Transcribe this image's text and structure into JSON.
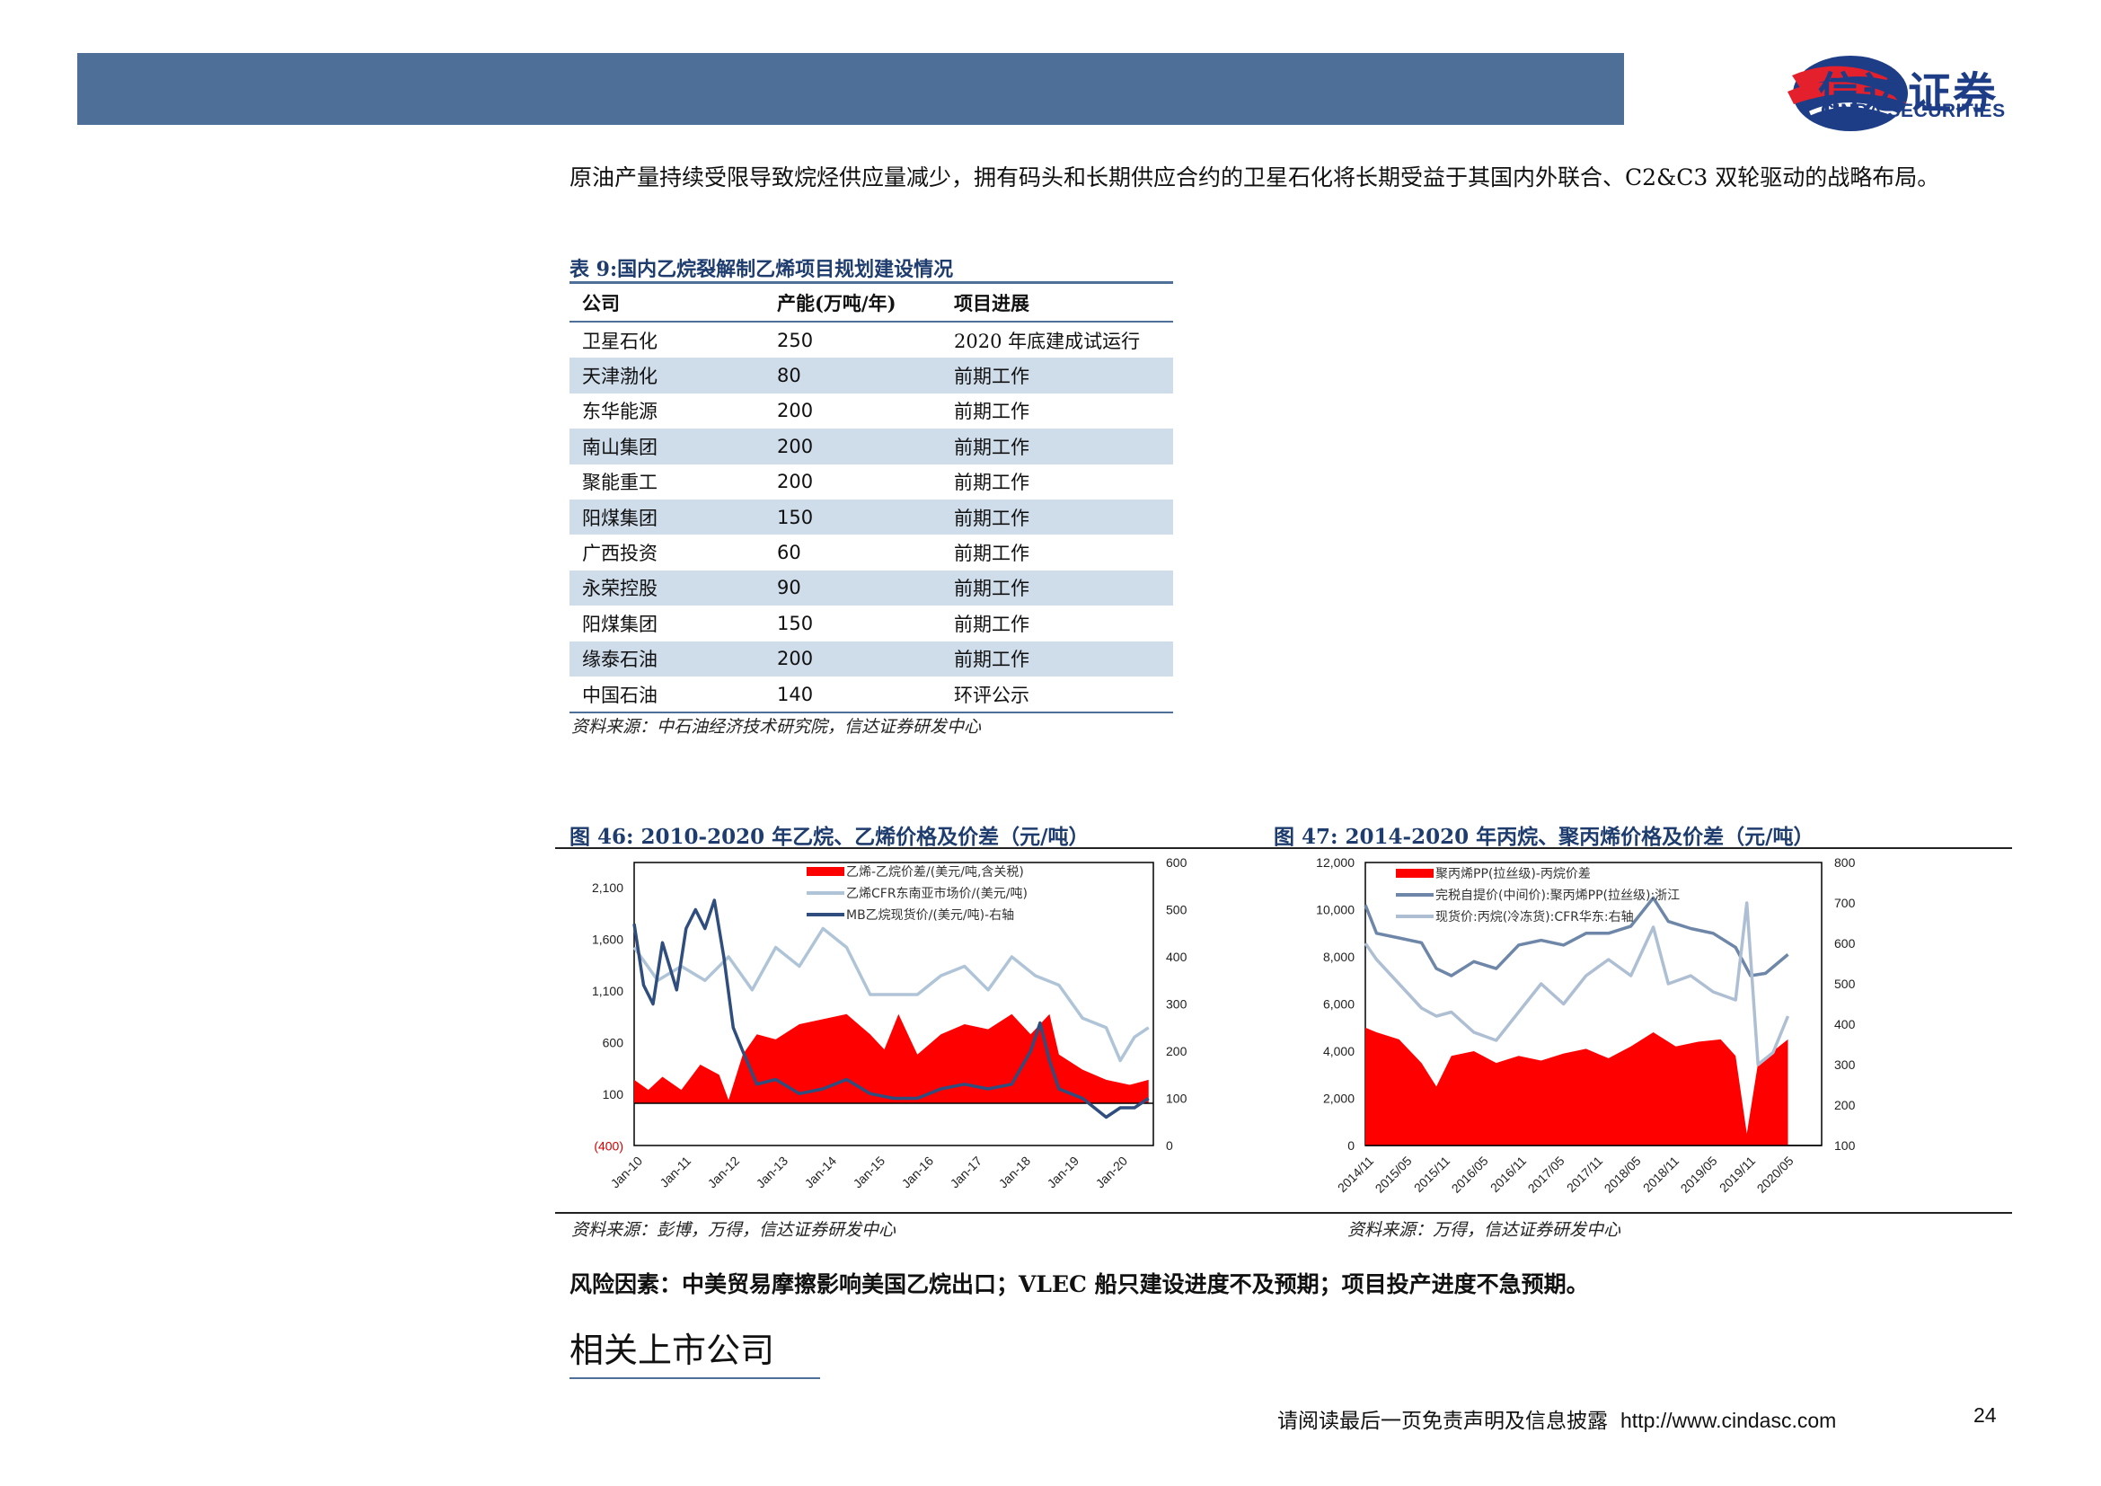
{
  "header": {
    "logo_cn": "信达证券",
    "logo_en": "CINDA SECURITIES"
  },
  "intro": "原油产量持续受限导致烷烃供应量减少，拥有码头和长期供应合约的卫星石化将长期受益于其国内外联合、C2&C3 双轮驱动的战略布局。",
  "table9": {
    "title": "表 9:国内乙烷裂解制乙烯项目规划建设情况",
    "headers": [
      "公司",
      "产能(万吨/年)",
      "项目进展"
    ],
    "rows": [
      [
        "卫星石化",
        "250",
        "2020 年底建成试运行"
      ],
      [
        "天津渤化",
        "80",
        "前期工作"
      ],
      [
        "东华能源",
        "200",
        "前期工作"
      ],
      [
        "南山集团",
        "200",
        "前期工作"
      ],
      [
        "聚能重工",
        "200",
        "前期工作"
      ],
      [
        "阳煤集团",
        "150",
        "前期工作"
      ],
      [
        "广西投资",
        "60",
        "前期工作"
      ],
      [
        "永荣控股",
        "90",
        "前期工作"
      ],
      [
        "阳煤集团",
        "150",
        "前期工作"
      ],
      [
        "缘泰石油",
        "200",
        "前期工作"
      ],
      [
        "中国石油",
        "140",
        "环评公示"
      ]
    ],
    "source": "资料来源：中石油经济技术研究院，信达证券研发中心"
  },
  "fig46": {
    "title": "图 46:  2010-2020 年乙烷、乙烯价格及价差（元/吨）",
    "source": "资料来源：彭博，万得，信达证券研发中心"
  },
  "fig47": {
    "title": "图 47:  2014-2020 年丙烷、聚丙烯价格及价差（元/吨）",
    "source": "资料来源：万得，信达证券研发中心"
  },
  "chart_data": [
    {
      "type": "area",
      "y_left_ticks": [
        "2,100",
        "1,600",
        "1,100",
        "600",
        "100",
        "(400)"
      ],
      "y_right_ticks": [
        "600",
        "500",
        "400",
        "300",
        "200",
        "100",
        "0"
      ],
      "x_ticks": [
        "Jan-10",
        "Jan-11",
        "Jan-12",
        "Jan-13",
        "Jan-14",
        "Jan-15",
        "Jan-16",
        "Jan-17",
        "Jan-18",
        "Jan-19",
        "Jan-20"
      ],
      "ylim_left": [
        -400,
        2400
      ],
      "ylim_right": [
        0,
        600
      ],
      "series": [
        {
          "name": "乙烯-乙烷价差/(美元/吨,含关税)",
          "color": "#ff0000",
          "axis": "left",
          "x": [
            2010.0,
            2010.3,
            2010.6,
            2011.0,
            2011.4,
            2011.8,
            2012.0,
            2012.3,
            2012.6,
            2013.0,
            2013.5,
            2014.0,
            2014.5,
            2015.0,
            2015.3,
            2015.6,
            2016.0,
            2016.5,
            2017.0,
            2017.5,
            2018.0,
            2018.4,
            2018.8,
            2019.0,
            2019.5,
            2020.0,
            2020.5,
            2020.9
          ],
          "values": [
            250,
            150,
            280,
            150,
            400,
            300,
            50,
            500,
            700,
            650,
            800,
            850,
            900,
            700,
            550,
            900,
            500,
            700,
            800,
            750,
            900,
            700,
            900,
            500,
            350,
            250,
            200,
            250
          ]
        },
        {
          "name": "乙烯CFR东南亚市场价/(美元/吨)",
          "color": "#b0c4d8",
          "axis": "right",
          "x": [
            2010.0,
            2010.5,
            2011.0,
            2011.5,
            2012.0,
            2012.5,
            2013.0,
            2013.5,
            2014.0,
            2014.5,
            2015.0,
            2015.5,
            2016.0,
            2016.5,
            2017.0,
            2017.5,
            2018.0,
            2018.5,
            2019.0,
            2019.5,
            2020.0,
            2020.3,
            2020.6,
            2020.9
          ],
          "values": [
            420,
            350,
            380,
            350,
            400,
            330,
            420,
            380,
            460,
            420,
            320,
            320,
            320,
            360,
            380,
            330,
            400,
            360,
            340,
            270,
            250,
            180,
            230,
            250
          ]
        },
        {
          "name": "MB乙烷现货价/(美元/吨)-右轴",
          "color": "#2f4d7d",
          "axis": "right",
          "x": [
            2010.0,
            2010.2,
            2010.4,
            2010.6,
            2010.9,
            2011.1,
            2011.3,
            2011.5,
            2011.7,
            2011.9,
            2012.1,
            2012.3,
            2012.6,
            2013.0,
            2013.5,
            2014.0,
            2014.5,
            2015.0,
            2015.5,
            2016.0,
            2016.5,
            2017.0,
            2017.5,
            2018.0,
            2018.4,
            2018.6,
            2018.8,
            2019.0,
            2019.5,
            2020.0,
            2020.3,
            2020.6,
            2020.9
          ],
          "values": [
            470,
            340,
            300,
            430,
            330,
            460,
            500,
            460,
            520,
            400,
            250,
            200,
            130,
            140,
            110,
            120,
            140,
            110,
            100,
            100,
            120,
            130,
            120,
            130,
            200,
            260,
            180,
            120,
            100,
            60,
            80,
            80,
            100
          ]
        }
      ]
    },
    {
      "type": "area",
      "y_left_ticks": [
        "12,000",
        "10,000",
        "8,000",
        "6,000",
        "4,000",
        "2,000",
        "0"
      ],
      "y_right_ticks": [
        "800",
        "700",
        "600",
        "500",
        "400",
        "300",
        "200",
        "100"
      ],
      "x_ticks": [
        "2014/11",
        "2015/05",
        "2015/11",
        "2016/05",
        "2016/11",
        "2017/05",
        "2017/11",
        "2018/05",
        "2018/11",
        "2019/05",
        "2019/11",
        "2020/05"
      ],
      "ylim_left": [
        0,
        12000
      ],
      "ylim_right": [
        100,
        800
      ],
      "series": [
        {
          "name": "聚丙烯PP(拉丝级)-丙烷价差",
          "color": "#ff0000",
          "axis": "left",
          "x": [
            2014.85,
            2015.0,
            2015.3,
            2015.6,
            2015.8,
            2016.0,
            2016.3,
            2016.6,
            2016.9,
            2017.2,
            2017.5,
            2017.8,
            2018.1,
            2018.4,
            2018.7,
            2019.0,
            2019.3,
            2019.6,
            2019.8,
            2019.95,
            2020.1,
            2020.3,
            2020.5
          ],
          "values": [
            5000,
            4800,
            4500,
            3500,
            2500,
            3800,
            4000,
            3500,
            3800,
            3600,
            3900,
            4100,
            3700,
            4200,
            4800,
            4200,
            4400,
            4500,
            3800,
            500,
            3500,
            4000,
            4500
          ]
        },
        {
          "name": "完税自提价(中间价):聚丙烯PP(拉丝级):浙江",
          "color": "#6e87a8",
          "axis": "left",
          "x": [
            2014.85,
            2015.0,
            2015.3,
            2015.6,
            2015.8,
            2016.0,
            2016.3,
            2016.6,
            2016.9,
            2017.2,
            2017.5,
            2017.8,
            2018.1,
            2018.4,
            2018.7,
            2018.9,
            2019.2,
            2019.5,
            2019.8,
            2020.0,
            2020.2,
            2020.5
          ],
          "values": [
            10200,
            9000,
            8800,
            8600,
            7500,
            7200,
            7800,
            7500,
            8500,
            8700,
            8500,
            9000,
            9000,
            9300,
            10500,
            9500,
            9200,
            9000,
            8400,
            7200,
            7300,
            8100
          ]
        },
        {
          "name": "现货价:丙烷(冷冻货):CFR华东:右轴",
          "color": "#aebfd3",
          "axis": "right",
          "x": [
            2014.85,
            2015.0,
            2015.3,
            2015.6,
            2015.8,
            2016.0,
            2016.3,
            2016.6,
            2016.9,
            2017.2,
            2017.5,
            2017.8,
            2018.1,
            2018.4,
            2018.7,
            2018.9,
            2019.2,
            2019.5,
            2019.8,
            2019.95,
            2020.1,
            2020.3,
            2020.5
          ],
          "values": [
            600,
            560,
            500,
            440,
            420,
            430,
            380,
            360,
            430,
            500,
            450,
            520,
            560,
            520,
            640,
            500,
            520,
            480,
            460,
            700,
            300,
            330,
            420
          ]
        }
      ]
    }
  ],
  "risk": "风险因素：中美贸易摩擦影响美国乙烷出口；VLEC 船只建设进度不及预期；项目投产进度不急预期。",
  "related": "相关上市公司",
  "footer": {
    "disclaimer": "请阅读最后一页免责声明及信息披露",
    "url": "http://www.cindasc.com",
    "page": "24"
  }
}
